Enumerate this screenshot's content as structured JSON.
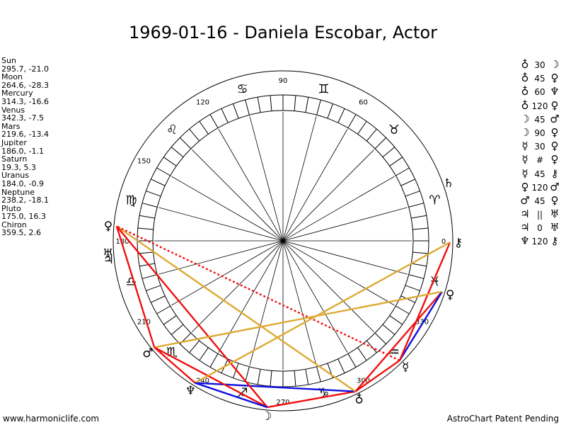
{
  "title": "1969-01-16 - Daniela Escobar, Actor",
  "positions": [
    {
      "name": "Sun",
      "value": "295.7, -21.0"
    },
    {
      "name": "Moon",
      "value": "264.6, -28.3"
    },
    {
      "name": "Mercury",
      "value": "314.3, -16.6"
    },
    {
      "name": "Venus",
      "value": "342.3, -7.5"
    },
    {
      "name": "Mars",
      "value": "219.6, -13.4"
    },
    {
      "name": "Jupiter",
      "value": "186.0, -1.1"
    },
    {
      "name": "Saturn",
      "value": "19.3, 5.3"
    },
    {
      "name": "Uranus",
      "value": "184.0, -0.9"
    },
    {
      "name": "Neptune",
      "value": "238.2, -18.1"
    },
    {
      "name": "Pluto",
      "value": "175.0, 16.3"
    },
    {
      "name": "Chiron",
      "value": "359.5, 2.6"
    }
  ],
  "aspects": [
    {
      "p1": "♁",
      "mark": "30",
      "p2": "☽"
    },
    {
      "p1": "♁",
      "mark": "45",
      "p2": "♀"
    },
    {
      "p1": "♁",
      "mark": "60",
      "p2": "♆"
    },
    {
      "p1": "♁",
      "mark": "120",
      "p2": "♀"
    },
    {
      "p1": "☽",
      "mark": "45",
      "p2": "♂"
    },
    {
      "p1": "☽",
      "mark": "90",
      "p2": "♀"
    },
    {
      "p1": "☿",
      "mark": "30",
      "p2": "♀"
    },
    {
      "p1": "☿",
      "mark": "#",
      "p2": "♀"
    },
    {
      "p1": "☿",
      "mark": "45",
      "p2": "⚷"
    },
    {
      "p1": "♀",
      "mark": "120",
      "p2": "♂"
    },
    {
      "p1": "♂",
      "mark": "45",
      "p2": "♀"
    },
    {
      "p1": "♃",
      "mark": "||",
      "p2": "♅"
    },
    {
      "p1": "♃",
      "mark": "0",
      "p2": "♅"
    },
    {
      "p1": "♆",
      "mark": "120",
      "p2": "⚷"
    }
  ],
  "wheel": {
    "degree_labels": [
      "90",
      "60",
      "0",
      "330",
      "300",
      "270",
      "240",
      "210",
      "180",
      "150",
      "120"
    ],
    "zodiac_signs": [
      "♈",
      "♉",
      "♊",
      "♋",
      "♌",
      "♍",
      "♎",
      "♏",
      "♐",
      "♑",
      "♒",
      "♓"
    ]
  },
  "planets": [
    {
      "id": "sun",
      "glyph": "♁",
      "lon": 295.7
    },
    {
      "id": "moon",
      "glyph": "☽",
      "lon": 264.6
    },
    {
      "id": "mercury",
      "glyph": "☿",
      "lon": 314.3
    },
    {
      "id": "venus",
      "glyph": "♀",
      "lon": 342.3
    },
    {
      "id": "mars",
      "glyph": "♂",
      "lon": 219.6
    },
    {
      "id": "jupiter",
      "glyph": "♃",
      "lon": 186.0
    },
    {
      "id": "saturn",
      "glyph": "♄",
      "lon": 19.3
    },
    {
      "id": "uranus",
      "glyph": "♅",
      "lon": 184.0
    },
    {
      "id": "neptune",
      "glyph": "♆",
      "lon": 238.2
    },
    {
      "id": "pluto",
      "glyph": "♀",
      "lon": 175.0
    },
    {
      "id": "chiron",
      "glyph": "⚷",
      "lon": 359.5
    }
  ],
  "aspect_lines": [
    {
      "from": "sun",
      "to": "moon",
      "color": "#ee1111",
      "style": "solid"
    },
    {
      "from": "sun",
      "to": "venus",
      "color": "#ee1111",
      "style": "solid"
    },
    {
      "from": "sun",
      "to": "neptune",
      "color": "#1111dd",
      "style": "solid"
    },
    {
      "from": "sun",
      "to": "pluto",
      "color": "#ddaa33",
      "style": "solid"
    },
    {
      "from": "moon",
      "to": "mars",
      "color": "#ee1111",
      "style": "solid"
    },
    {
      "from": "moon",
      "to": "pluto",
      "color": "#ee1111",
      "style": "solid"
    },
    {
      "from": "mercury",
      "to": "venus",
      "color": "#1111dd",
      "style": "solid"
    },
    {
      "from": "mercury",
      "to": "pluto",
      "color": "#ee1111",
      "style": "dotted"
    },
    {
      "from": "mercury",
      "to": "chiron",
      "color": "#ee1111",
      "style": "solid"
    },
    {
      "from": "venus",
      "to": "mars",
      "color": "#ddaa33",
      "style": "solid"
    },
    {
      "from": "mars",
      "to": "pluto",
      "color": "#ee1111",
      "style": "solid"
    },
    {
      "from": "neptune",
      "to": "chiron",
      "color": "#ddaa33",
      "style": "solid"
    },
    {
      "from": "neptune",
      "to": "mars",
      "color": "#ee1111",
      "style": "solid"
    },
    {
      "from": "neptune",
      "to": "moon",
      "color": "#1111dd",
      "style": "solid"
    },
    {
      "from": "mercury",
      "to": "sun",
      "color": "#ee1111",
      "style": "solid"
    }
  ],
  "footer": {
    "left": "www.harmoniclife.com",
    "right": "AstroChart Patent Pending"
  }
}
